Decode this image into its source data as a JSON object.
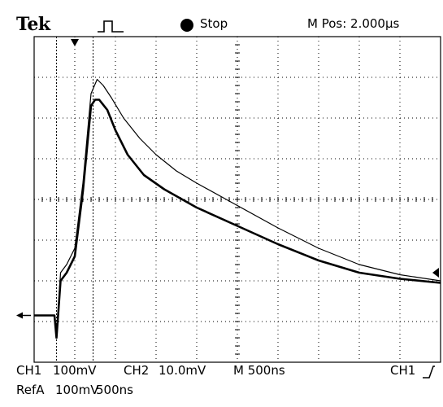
{
  "header": {
    "brand": "Tek",
    "trigger_icon": "trigger-pulse-icon",
    "status": "Stop",
    "mpos": "M Pos: 2.000µs"
  },
  "footer": {
    "ch1": "CH1",
    "ch1_scale": "100mV",
    "ch2": "CH2",
    "ch2_scale": "10.0mV",
    "timebase": "M 500ns",
    "trigger": "CH1",
    "trigger_slope_icon": "rising-edge-icon",
    "ref": "RefA",
    "ref_scale": "100mV",
    "ref_time": "500ns"
  },
  "colors": {
    "trace": "#000000",
    "background": "#ffffff",
    "grid": "#000000"
  },
  "chart_data": {
    "type": "line",
    "title": "",
    "xlabel": "",
    "ylabel": "",
    "xlim": [
      0,
      10
    ],
    "ylim": [
      0,
      8
    ],
    "grid": true,
    "x_unit": "div (500 ns/div)",
    "y_unit": "div",
    "series": [
      {
        "x": [
          0,
          0.5,
          0.55,
          0.65,
          0.8,
          1.0,
          1.2,
          1.4,
          1.5,
          1.6,
          1.8,
          2.0,
          2.3,
          2.7,
          3.2,
          4.0,
          5.0,
          6.0,
          7.0,
          8.0,
          9.0,
          10.0
        ],
        "y": [
          1.15,
          1.15,
          0.6,
          2.0,
          2.2,
          2.6,
          4.2,
          6.3,
          6.45,
          6.45,
          6.2,
          5.7,
          5.1,
          4.6,
          4.25,
          3.8,
          3.35,
          2.9,
          2.5,
          2.2,
          2.05,
          1.95
        ]
      },
      {
        "x": [
          0,
          0.5,
          0.55,
          0.65,
          0.8,
          1.0,
          1.2,
          1.4,
          1.55,
          1.7,
          1.9,
          2.2,
          2.6,
          3.0,
          3.5,
          4.0,
          5.0,
          6.0,
          7.0,
          8.0,
          9.0,
          10.0
        ],
        "y": [
          1.15,
          1.15,
          0.6,
          2.2,
          2.4,
          2.8,
          4.4,
          6.6,
          6.95,
          6.8,
          6.5,
          6.0,
          5.5,
          5.1,
          4.7,
          4.4,
          3.85,
          3.3,
          2.8,
          2.4,
          2.15,
          2.0
        ]
      }
    ],
    "markers": {
      "ground_level_y": 1.15,
      "trigger_level_y": 2.2,
      "trigger_position_x": 1.0,
      "cursor_lines_x": [
        0.55,
        1.45
      ]
    }
  }
}
